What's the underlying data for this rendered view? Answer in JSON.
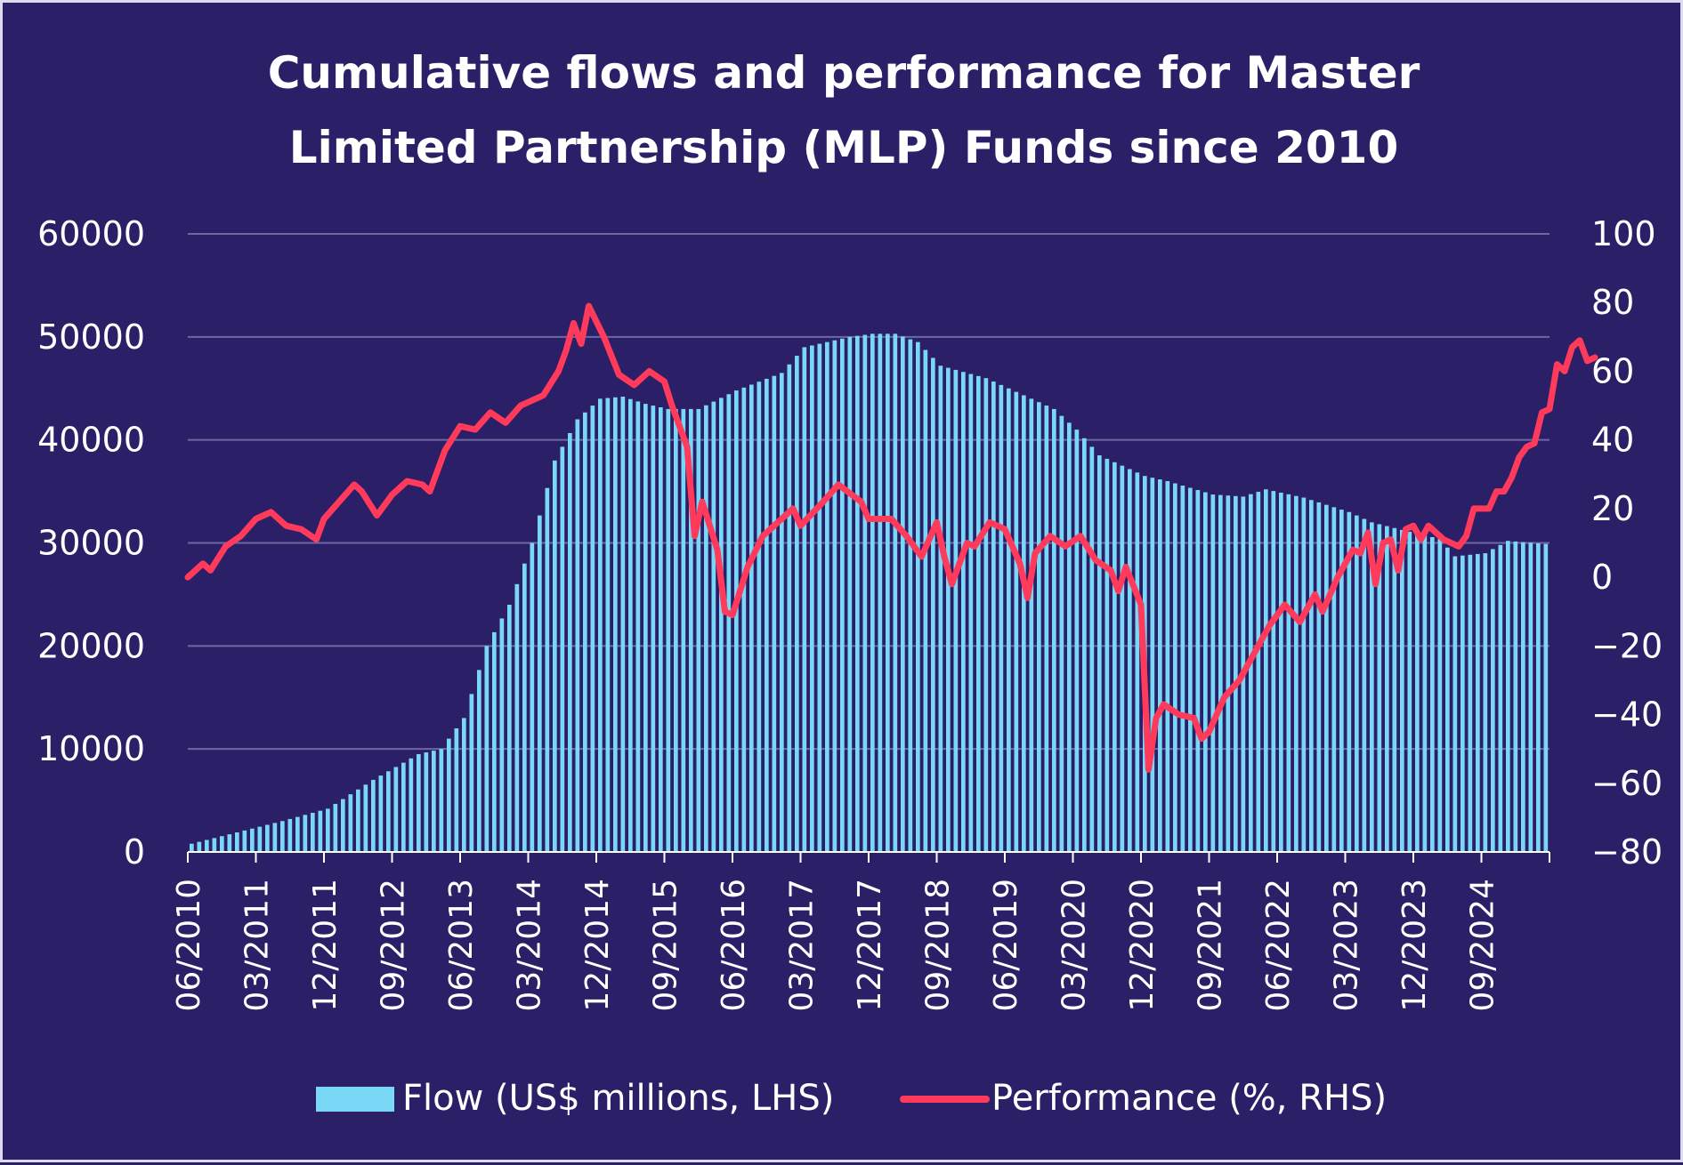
{
  "chart_data": {
    "type": "bar+line",
    "title": "Cumulative flows and performance for Master Limited Partnership (MLP) Funds since 2010",
    "title_lines": [
      "Cumulative flows and performance for Master",
      "Limited Partnership (MLP) Funds since 2010"
    ],
    "y_left": {
      "range": [
        0,
        60000
      ],
      "ticks": [
        "60000",
        "50000",
        "40000",
        "30000",
        "20000",
        "10000",
        "0"
      ]
    },
    "y_right": {
      "range": [
        -80,
        100
      ],
      "ticks": [
        "100",
        "80",
        "60",
        "40",
        "20",
        "0",
        "-20",
        "-40",
        "-60",
        "-80"
      ]
    },
    "x_start": "2010-06",
    "x_end": "2025-06",
    "x_ticks": [
      "06/2010",
      "03/2011",
      "12/2011",
      "09/2012",
      "06/2013",
      "03/2014",
      "12/2014",
      "09/2015",
      "06/2016",
      "03/2017",
      "12/2017",
      "09/2018",
      "06/2019",
      "03/2020",
      "12/2020",
      "09/2021",
      "06/2022",
      "03/2023",
      "12/2023",
      "09/2024"
    ],
    "grid": true,
    "legend_position": "bottom",
    "series": [
      {
        "name": "Flow (US$ millions, LHS)",
        "type": "bar",
        "axis": "left",
        "color": "#79d8f5",
        "keyframes": [
          [
            "2010-06",
            800
          ],
          [
            "2011-06",
            3000
          ],
          [
            "2011-12",
            4200
          ],
          [
            "2012-06",
            7000
          ],
          [
            "2012-12",
            9500
          ],
          [
            "2013-03",
            10000
          ],
          [
            "2013-06",
            13000
          ],
          [
            "2013-09",
            20000
          ],
          [
            "2013-12",
            24000
          ],
          [
            "2014-03",
            30000
          ],
          [
            "2014-06",
            38000
          ],
          [
            "2014-09",
            42000
          ],
          [
            "2014-12",
            44000
          ],
          [
            "2015-03",
            44200
          ],
          [
            "2015-06",
            43500
          ],
          [
            "2015-09",
            43000
          ],
          [
            "2016-01",
            43000
          ],
          [
            "2016-06",
            44800
          ],
          [
            "2016-12",
            46500
          ],
          [
            "2017-03",
            49000
          ],
          [
            "2017-09",
            50000
          ],
          [
            "2017-12",
            50300
          ],
          [
            "2018-03",
            50300
          ],
          [
            "2018-06",
            49500
          ],
          [
            "2018-09",
            47200
          ],
          [
            "2019-03",
            46000
          ],
          [
            "2019-06",
            45000
          ],
          [
            "2019-12",
            43000
          ],
          [
            "2020-03",
            41000
          ],
          [
            "2020-06",
            38500
          ],
          [
            "2020-12",
            36500
          ],
          [
            "2021-03",
            36000
          ],
          [
            "2021-09",
            34700
          ],
          [
            "2022-01",
            34500
          ],
          [
            "2022-04",
            35200
          ],
          [
            "2022-09",
            34400
          ],
          [
            "2023-03",
            33000
          ],
          [
            "2023-06",
            32000
          ],
          [
            "2023-12",
            30900
          ],
          [
            "2024-03",
            30400
          ],
          [
            "2024-05",
            28700
          ],
          [
            "2024-09",
            29000
          ],
          [
            "2024-12",
            30200
          ],
          [
            "2025-05",
            29900
          ]
        ]
      },
      {
        "name": "Performance (%, RHS)",
        "type": "line",
        "axis": "right",
        "color": "#ff3a5a",
        "points": [
          [
            "2010-06",
            0
          ],
          [
            "2010-08",
            4
          ],
          [
            "2010-09",
            2
          ],
          [
            "2010-11",
            9
          ],
          [
            "2011-01",
            12
          ],
          [
            "2011-03",
            17
          ],
          [
            "2011-05",
            19
          ],
          [
            "2011-07",
            15
          ],
          [
            "2011-09",
            14
          ],
          [
            "2011-11",
            11
          ],
          [
            "2011-12",
            17
          ],
          [
            "2012-02",
            22
          ],
          [
            "2012-04",
            27
          ],
          [
            "2012-05",
            25
          ],
          [
            "2012-07",
            18
          ],
          [
            "2012-09",
            24
          ],
          [
            "2012-11",
            28
          ],
          [
            "2013-01",
            27
          ],
          [
            "2013-02",
            25
          ],
          [
            "2013-04",
            37
          ],
          [
            "2013-06",
            44
          ],
          [
            "2013-08",
            43
          ],
          [
            "2013-10",
            48
          ],
          [
            "2013-12",
            45
          ],
          [
            "2014-02",
            50
          ],
          [
            "2014-05",
            53
          ],
          [
            "2014-07",
            60
          ],
          [
            "2014-08",
            66
          ],
          [
            "2014-09",
            74
          ],
          [
            "2014-10",
            68
          ],
          [
            "2014-11",
            79
          ],
          [
            "2015-01",
            70
          ],
          [
            "2015-03",
            59
          ],
          [
            "2015-05",
            56
          ],
          [
            "2015-07",
            60
          ],
          [
            "2015-09",
            57
          ],
          [
            "2015-10",
            50
          ],
          [
            "2015-12",
            38
          ],
          [
            "2016-01",
            12
          ],
          [
            "2016-02",
            22
          ],
          [
            "2016-04",
            8
          ],
          [
            "2016-05",
            -10
          ],
          [
            "2016-06",
            -11
          ],
          [
            "2016-08",
            3
          ],
          [
            "2016-10",
            12
          ],
          [
            "2016-12",
            16
          ],
          [
            "2017-02",
            20
          ],
          [
            "2017-03",
            15
          ],
          [
            "2017-06",
            22
          ],
          [
            "2017-08",
            27
          ],
          [
            "2017-11",
            22
          ],
          [
            "2017-12",
            17
          ],
          [
            "2018-03",
            17
          ],
          [
            "2018-05",
            12
          ],
          [
            "2018-07",
            6
          ],
          [
            "2018-09",
            16
          ],
          [
            "2018-10",
            6
          ],
          [
            "2018-11",
            -2
          ],
          [
            "2019-01",
            10
          ],
          [
            "2019-02",
            9
          ],
          [
            "2019-04",
            16
          ],
          [
            "2019-06",
            14
          ],
          [
            "2019-08",
            4
          ],
          [
            "2019-09",
            -6
          ],
          [
            "2019-10",
            7
          ],
          [
            "2019-12",
            12
          ],
          [
            "2020-02",
            9
          ],
          [
            "2020-04",
            12
          ],
          [
            "2020-06",
            5
          ],
          [
            "2020-08",
            2
          ],
          [
            "2020-09",
            -4
          ],
          [
            "2020-10",
            3
          ],
          [
            "2020-12",
            -8
          ],
          [
            "2021-01",
            -56
          ],
          [
            "2021-02",
            -41
          ],
          [
            "2021-03",
            -37
          ],
          [
            "2021-05",
            -40
          ],
          [
            "2021-07",
            -41
          ],
          [
            "2021-08",
            -47
          ],
          [
            "2021-09",
            -45
          ],
          [
            "2021-11",
            -35
          ],
          [
            "2022-01",
            -30
          ],
          [
            "2022-03",
            -22
          ],
          [
            "2022-05",
            -14
          ],
          [
            "2022-07",
            -8
          ],
          [
            "2022-09",
            -13
          ],
          [
            "2022-11",
            -5
          ],
          [
            "2022-12",
            -10
          ],
          [
            "2023-02",
            0
          ],
          [
            "2023-04",
            8
          ],
          [
            "2023-05",
            7
          ],
          [
            "2023-06",
            13
          ],
          [
            "2023-07",
            -2
          ],
          [
            "2023-08",
            10
          ],
          [
            "2023-09",
            11
          ],
          [
            "2023-10",
            2
          ],
          [
            "2023-11",
            14
          ],
          [
            "2023-12",
            15
          ],
          [
            "2024-01",
            11
          ],
          [
            "2024-02",
            15
          ],
          [
            "2024-04",
            11
          ],
          [
            "2024-06",
            9
          ],
          [
            "2024-07",
            12
          ],
          [
            "2024-08",
            20
          ],
          [
            "2024-10",
            20
          ],
          [
            "2024-11",
            25
          ],
          [
            "2024-12",
            25
          ],
          [
            "2025-01",
            29
          ],
          [
            "2025-02",
            35
          ],
          [
            "2025-03",
            38
          ],
          [
            "2025-04",
            39
          ],
          [
            "2025-05",
            48
          ],
          [
            "2025-06",
            49
          ],
          [
            "2025-07",
            62
          ],
          [
            "2025-08",
            60
          ],
          [
            "2025-09",
            67
          ],
          [
            "2025-10",
            69
          ],
          [
            "2025-11",
            63
          ],
          [
            "2025-12",
            64
          ]
        ]
      }
    ]
  }
}
